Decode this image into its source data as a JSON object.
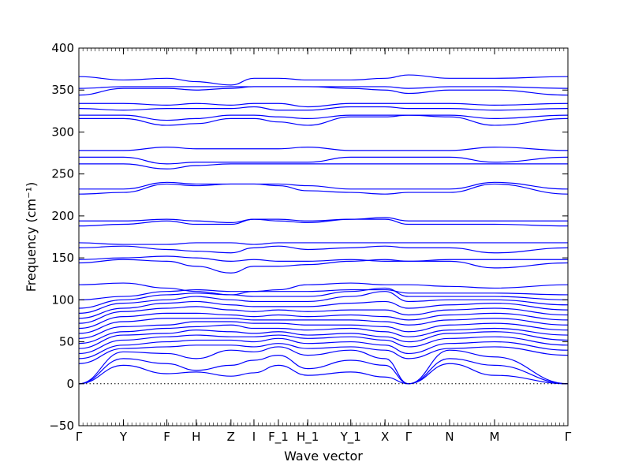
{
  "chart_data": {
    "type": "line",
    "xlabel": "Wave vector",
    "ylabel": "Frequency (cm⁻¹)",
    "ylim": [
      -50,
      400
    ],
    "yticks": [
      -50,
      0,
      50,
      100,
      150,
      200,
      250,
      300,
      350,
      400
    ],
    "xlim": [
      0,
      1
    ],
    "high_symmetry_points": [
      {
        "label": "Γ",
        "x": 0.0
      },
      {
        "label": "Y",
        "x": 0.091
      },
      {
        "label": "F",
        "x": 0.18
      },
      {
        "label": "H",
        "x": 0.24
      },
      {
        "label": "Z",
        "x": 0.311
      },
      {
        "label": "I",
        "x": 0.358
      },
      {
        "label": "F_1",
        "x": 0.408
      },
      {
        "label": "H_1",
        "x": 0.468
      },
      {
        "label": "Y_1",
        "x": 0.556
      },
      {
        "label": "X",
        "x": 0.626
      },
      {
        "label": "Γ",
        "x": 0.674
      },
      {
        "label": "N",
        "x": 0.758
      },
      {
        "label": "M",
        "x": 0.85
      },
      {
        "label": "Γ",
        "x": 1.0
      }
    ],
    "zero_line": true,
    "series_color": "#0000ff",
    "series": [
      {
        "x": [
          0,
          0.091,
          0.18,
          0.24,
          0.311,
          0.358,
          0.408,
          0.468,
          0.556,
          0.626,
          0.674,
          0.758,
          0.85,
          1.0
        ],
        "y": [
          0,
          22,
          12,
          14,
          9,
          13,
          22,
          10,
          14,
          8,
          0,
          24,
          10,
          0
        ]
      },
      {
        "x": [
          0,
          0.091,
          0.18,
          0.24,
          0.311,
          0.358,
          0.408,
          0.468,
          0.556,
          0.626,
          0.674,
          0.758,
          0.85,
          1.0
        ],
        "y": [
          0,
          30,
          24,
          16,
          22,
          28,
          34,
          18,
          28,
          22,
          0,
          30,
          22,
          0
        ]
      },
      {
        "x": [
          0,
          0.091,
          0.18,
          0.24,
          0.311,
          0.358,
          0.408,
          0.468,
          0.556,
          0.626,
          0.674,
          0.758,
          0.85,
          1.0
        ],
        "y": [
          0,
          38,
          36,
          30,
          40,
          38,
          44,
          34,
          40,
          30,
          0,
          40,
          32,
          0
        ]
      },
      {
        "x": [
          0,
          0.091,
          0.18,
          0.24,
          0.311,
          0.358,
          0.408,
          0.468,
          0.556,
          0.626,
          0.674,
          0.758,
          0.85,
          1.0
        ],
        "y": [
          24,
          42,
          44,
          46,
          46,
          44,
          48,
          42,
          44,
          40,
          30,
          42,
          44,
          34
        ]
      },
      {
        "x": [
          0,
          0.091,
          0.18,
          0.24,
          0.311,
          0.358,
          0.408,
          0.468,
          0.556,
          0.626,
          0.674,
          0.758,
          0.85,
          1.0
        ],
        "y": [
          30,
          46,
          50,
          52,
          52,
          50,
          54,
          48,
          50,
          46,
          36,
          48,
          50,
          40
        ]
      },
      {
        "x": [
          0,
          0.091,
          0.18,
          0.24,
          0.311,
          0.358,
          0.408,
          0.468,
          0.556,
          0.626,
          0.674,
          0.758,
          0.85,
          1.0
        ],
        "y": [
          36,
          52,
          56,
          58,
          56,
          56,
          58,
          54,
          56,
          52,
          44,
          54,
          56,
          46
        ]
      },
      {
        "x": [
          0,
          0.091,
          0.18,
          0.24,
          0.311,
          0.358,
          0.408,
          0.468,
          0.556,
          0.626,
          0.674,
          0.758,
          0.85,
          1.0
        ],
        "y": [
          42,
          58,
          60,
          64,
          62,
          60,
          62,
          58,
          60,
          56,
          50,
          60,
          62,
          52
        ]
      },
      {
        "x": [
          0,
          0.091,
          0.18,
          0.24,
          0.311,
          0.358,
          0.408,
          0.468,
          0.556,
          0.626,
          0.674,
          0.758,
          0.85,
          1.0
        ],
        "y": [
          48,
          62,
          66,
          68,
          70,
          66,
          66,
          64,
          66,
          62,
          56,
          64,
          66,
          58
        ]
      },
      {
        "x": [
          0,
          0.091,
          0.18,
          0.24,
          0.311,
          0.358,
          0.408,
          0.468,
          0.556,
          0.626,
          0.674,
          0.758,
          0.85,
          1.0
        ],
        "y": [
          54,
          68,
          70,
          74,
          74,
          72,
          72,
          70,
          70,
          68,
          62,
          70,
          72,
          64
        ]
      },
      {
        "x": [
          0,
          0.091,
          0.18,
          0.24,
          0.311,
          0.358,
          0.408,
          0.468,
          0.556,
          0.626,
          0.674,
          0.758,
          0.85,
          1.0
        ],
        "y": [
          60,
          74,
          78,
          78,
          78,
          76,
          76,
          76,
          76,
          74,
          70,
          76,
          78,
          70
        ]
      },
      {
        "x": [
          0,
          0.091,
          0.18,
          0.24,
          0.311,
          0.358,
          0.408,
          0.468,
          0.556,
          0.626,
          0.674,
          0.758,
          0.85,
          1.0
        ],
        "y": [
          66,
          80,
          84,
          84,
          82,
          80,
          82,
          80,
          82,
          80,
          76,
          82,
          84,
          76
        ]
      },
      {
        "x": [
          0,
          0.091,
          0.18,
          0.24,
          0.311,
          0.358,
          0.408,
          0.468,
          0.556,
          0.626,
          0.674,
          0.758,
          0.85,
          1.0
        ],
        "y": [
          72,
          86,
          90,
          92,
          88,
          86,
          88,
          86,
          88,
          88,
          82,
          88,
          90,
          82
        ]
      },
      {
        "x": [
          0,
          0.091,
          0.18,
          0.24,
          0.311,
          0.358,
          0.408,
          0.468,
          0.556,
          0.626,
          0.674,
          0.758,
          0.85,
          1.0
        ],
        "y": [
          78,
          90,
          96,
          98,
          94,
          92,
          92,
          92,
          96,
          98,
          90,
          94,
          96,
          88
        ]
      },
      {
        "x": [
          0,
          0.091,
          0.18,
          0.24,
          0.311,
          0.358,
          0.408,
          0.468,
          0.556,
          0.626,
          0.674,
          0.758,
          0.85,
          1.0
        ],
        "y": [
          84,
          96,
          100,
          104,
          100,
          98,
          98,
          98,
          104,
          110,
          98,
          100,
          100,
          94
        ]
      },
      {
        "x": [
          0,
          0.091,
          0.18,
          0.24,
          0.311,
          0.358,
          0.408,
          0.468,
          0.556,
          0.626,
          0.674,
          0.758,
          0.85,
          1.0
        ],
        "y": [
          90,
          100,
          106,
          108,
          106,
          104,
          104,
          104,
          110,
          114,
          104,
          104,
          104,
          100
        ]
      },
      {
        "x": [
          0,
          0.091,
          0.18,
          0.24,
          0.311,
          0.358,
          0.408,
          0.468,
          0.556,
          0.626,
          0.674,
          0.758,
          0.85,
          1.0
        ],
        "y": [
          100,
          104,
          110,
          112,
          110,
          110,
          110,
          110,
          112,
          112,
          108,
          108,
          108,
          106
        ]
      },
      {
        "x": [
          0,
          0.091,
          0.18,
          0.24,
          0.311,
          0.358,
          0.408,
          0.468,
          0.556,
          0.626,
          0.674,
          0.758,
          0.85,
          1.0
        ],
        "y": [
          118,
          120,
          114,
          110,
          106,
          110,
          112,
          118,
          120,
          118,
          118,
          116,
          114,
          118
        ]
      },
      {
        "x": [
          0,
          0.091,
          0.18,
          0.24,
          0.311,
          0.358,
          0.408,
          0.468,
          0.556,
          0.626,
          0.674,
          0.758,
          0.85,
          1.0
        ],
        "y": [
          144,
          148,
          146,
          140,
          132,
          140,
          140,
          142,
          146,
          148,
          146,
          146,
          138,
          144
        ]
      },
      {
        "x": [
          0,
          0.091,
          0.18,
          0.24,
          0.311,
          0.358,
          0.408,
          0.468,
          0.556,
          0.626,
          0.674,
          0.758,
          0.85,
          1.0
        ],
        "y": [
          148,
          150,
          152,
          150,
          146,
          148,
          146,
          146,
          148,
          146,
          146,
          148,
          148,
          148
        ]
      },
      {
        "x": [
          0,
          0.091,
          0.18,
          0.24,
          0.311,
          0.358,
          0.408,
          0.468,
          0.556,
          0.626,
          0.674,
          0.758,
          0.85,
          1.0
        ],
        "y": [
          162,
          164,
          160,
          158,
          156,
          162,
          164,
          160,
          162,
          164,
          162,
          162,
          156,
          162
        ]
      },
      {
        "x": [
          0,
          0.091,
          0.18,
          0.24,
          0.311,
          0.358,
          0.408,
          0.468,
          0.556,
          0.626,
          0.674,
          0.758,
          0.85,
          1.0
        ],
        "y": [
          168,
          166,
          166,
          168,
          168,
          166,
          168,
          168,
          168,
          168,
          168,
          168,
          168,
          168
        ]
      },
      {
        "x": [
          0,
          0.091,
          0.18,
          0.24,
          0.311,
          0.358,
          0.408,
          0.468,
          0.556,
          0.626,
          0.674,
          0.758,
          0.85,
          1.0
        ],
        "y": [
          188,
          190,
          194,
          190,
          190,
          196,
          194,
          192,
          196,
          196,
          190,
          190,
          190,
          188
        ]
      },
      {
        "x": [
          0,
          0.091,
          0.18,
          0.24,
          0.311,
          0.358,
          0.408,
          0.468,
          0.556,
          0.626,
          0.674,
          0.758,
          0.85,
          1.0
        ],
        "y": [
          194,
          194,
          196,
          194,
          192,
          196,
          196,
          194,
          196,
          198,
          194,
          194,
          194,
          194
        ]
      },
      {
        "x": [
          0,
          0.091,
          0.18,
          0.24,
          0.311,
          0.358,
          0.408,
          0.468,
          0.556,
          0.626,
          0.674,
          0.758,
          0.85,
          1.0
        ],
        "y": [
          226,
          228,
          238,
          236,
          238,
          238,
          236,
          230,
          228,
          226,
          228,
          228,
          238,
          226
        ]
      },
      {
        "x": [
          0,
          0.091,
          0.18,
          0.24,
          0.311,
          0.358,
          0.408,
          0.468,
          0.556,
          0.626,
          0.674,
          0.758,
          0.85,
          1.0
        ],
        "y": [
          232,
          232,
          240,
          238,
          238,
          238,
          238,
          236,
          232,
          232,
          232,
          232,
          240,
          232
        ]
      },
      {
        "x": [
          0,
          0.091,
          0.18,
          0.24,
          0.311,
          0.358,
          0.408,
          0.468,
          0.556,
          0.626,
          0.674,
          0.758,
          0.85,
          1.0
        ],
        "y": [
          262,
          262,
          256,
          260,
          262,
          262,
          262,
          262,
          262,
          262,
          262,
          262,
          262,
          262
        ]
      },
      {
        "x": [
          0,
          0.091,
          0.18,
          0.24,
          0.311,
          0.358,
          0.408,
          0.468,
          0.556,
          0.626,
          0.674,
          0.758,
          0.85,
          1.0
        ],
        "y": [
          270,
          270,
          262,
          264,
          264,
          264,
          264,
          264,
          270,
          270,
          270,
          270,
          264,
          270
        ]
      },
      {
        "x": [
          0,
          0.091,
          0.18,
          0.24,
          0.311,
          0.358,
          0.408,
          0.468,
          0.556,
          0.626,
          0.674,
          0.758,
          0.85,
          1.0
        ],
        "y": [
          278,
          278,
          282,
          280,
          280,
          280,
          280,
          282,
          278,
          278,
          278,
          278,
          282,
          278
        ]
      },
      {
        "x": [
          0,
          0.091,
          0.18,
          0.24,
          0.311,
          0.358,
          0.408,
          0.468,
          0.556,
          0.626,
          0.674,
          0.758,
          0.85,
          1.0
        ],
        "y": [
          316,
          316,
          308,
          310,
          316,
          316,
          312,
          308,
          318,
          318,
          320,
          318,
          308,
          316
        ]
      },
      {
        "x": [
          0,
          0.091,
          0.18,
          0.24,
          0.311,
          0.358,
          0.408,
          0.468,
          0.556,
          0.626,
          0.674,
          0.758,
          0.85,
          1.0
        ],
        "y": [
          320,
          320,
          314,
          316,
          320,
          320,
          318,
          316,
          320,
          320,
          320,
          320,
          316,
          320
        ]
      },
      {
        "x": [
          0,
          0.091,
          0.18,
          0.24,
          0.311,
          0.358,
          0.408,
          0.468,
          0.556,
          0.626,
          0.674,
          0.758,
          0.85,
          1.0
        ],
        "y": [
          328,
          326,
          328,
          328,
          328,
          330,
          326,
          326,
          330,
          330,
          328,
          328,
          326,
          328
        ]
      },
      {
        "x": [
          0,
          0.091,
          0.18,
          0.24,
          0.311,
          0.358,
          0.408,
          0.468,
          0.556,
          0.626,
          0.674,
          0.758,
          0.85,
          1.0
        ],
        "y": [
          334,
          334,
          332,
          334,
          332,
          334,
          334,
          330,
          334,
          334,
          334,
          334,
          332,
          334
        ]
      },
      {
        "x": [
          0,
          0.091,
          0.18,
          0.24,
          0.311,
          0.358,
          0.408,
          0.468,
          0.556,
          0.626,
          0.674,
          0.758,
          0.85,
          1.0
        ],
        "y": [
          344,
          352,
          352,
          350,
          352,
          354,
          354,
          354,
          352,
          350,
          346,
          350,
          350,
          344
        ]
      },
      {
        "x": [
          0,
          0.091,
          0.18,
          0.24,
          0.311,
          0.358,
          0.408,
          0.468,
          0.556,
          0.626,
          0.674,
          0.758,
          0.85,
          1.0
        ],
        "y": [
          352,
          354,
          354,
          354,
          354,
          354,
          354,
          354,
          354,
          354,
          352,
          354,
          354,
          352
        ]
      },
      {
        "x": [
          0,
          0.091,
          0.18,
          0.24,
          0.311,
          0.358,
          0.408,
          0.468,
          0.556,
          0.626,
          0.674,
          0.758,
          0.85,
          1.0
        ],
        "y": [
          366,
          362,
          364,
          360,
          356,
          364,
          364,
          362,
          362,
          364,
          368,
          364,
          364,
          366
        ]
      }
    ]
  }
}
